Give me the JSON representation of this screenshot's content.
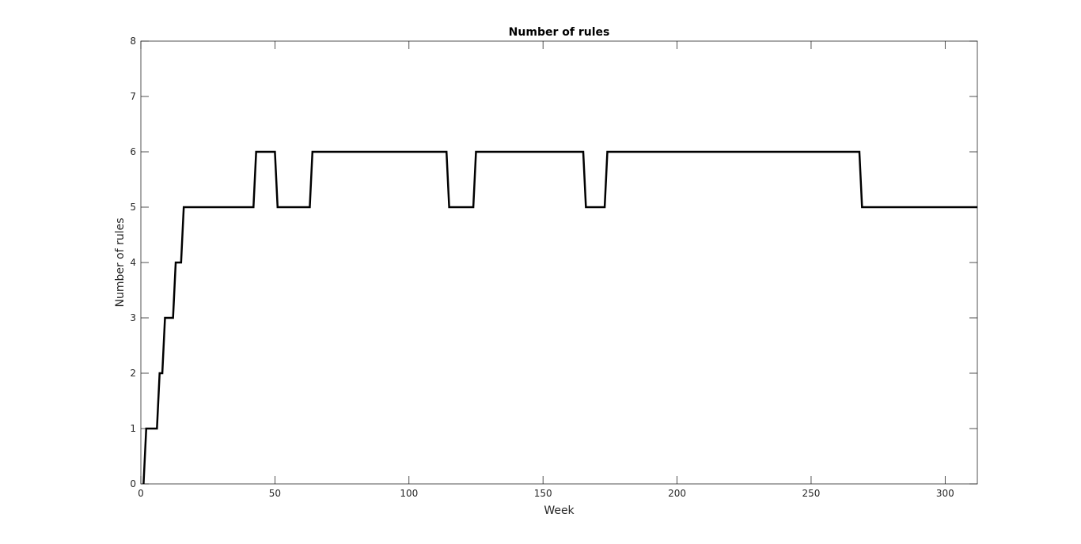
{
  "chart_data": {
    "type": "line",
    "title": "Number of rules",
    "xlabel": "Week",
    "ylabel": "Number of rules",
    "xlim": [
      0,
      312
    ],
    "ylim": [
      0,
      8
    ],
    "x_ticks": [
      0,
      50,
      100,
      150,
      200,
      250,
      300
    ],
    "y_ticks": [
      0,
      1,
      2,
      3,
      4,
      5,
      6,
      7,
      8
    ],
    "grid": false,
    "line_color": "#000000",
    "series": [
      {
        "x": [
          1,
          2,
          6,
          7,
          8,
          9,
          12,
          13,
          15,
          16,
          42,
          43,
          50,
          51,
          63,
          64,
          114,
          115,
          124,
          125,
          165,
          166,
          173,
          174,
          268,
          269,
          312
        ],
        "y": [
          0,
          1,
          1,
          2,
          2,
          3,
          3,
          4,
          4,
          5,
          5,
          6,
          6,
          5,
          5,
          6,
          6,
          5,
          5,
          6,
          6,
          5,
          5,
          6,
          6,
          5,
          5
        ]
      }
    ]
  }
}
